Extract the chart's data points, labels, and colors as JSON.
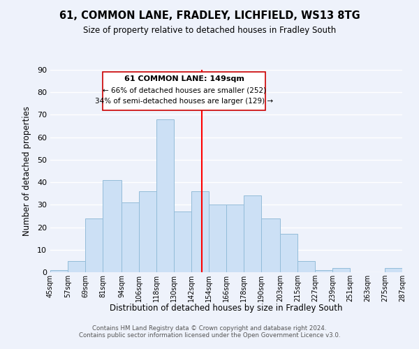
{
  "title": "61, COMMON LANE, FRADLEY, LICHFIELD, WS13 8TG",
  "subtitle": "Size of property relative to detached houses in Fradley South",
  "xlabel": "Distribution of detached houses by size in Fradley South",
  "ylabel": "Number of detached properties",
  "bar_color": "#cce0f5",
  "bar_edge_color": "#93bcd9",
  "bin_edges": [
    45,
    57,
    69,
    81,
    94,
    106,
    118,
    130,
    142,
    154,
    166,
    178,
    190,
    203,
    215,
    227,
    239,
    251,
    263,
    275,
    287
  ],
  "bin_labels": [
    "45sqm",
    "57sqm",
    "69sqm",
    "81sqm",
    "94sqm",
    "106sqm",
    "118sqm",
    "130sqm",
    "142sqm",
    "154sqm",
    "166sqm",
    "178sqm",
    "190sqm",
    "203sqm",
    "215sqm",
    "227sqm",
    "239sqm",
    "251sqm",
    "263sqm",
    "275sqm",
    "287sqm"
  ],
  "counts": [
    1,
    5,
    24,
    41,
    31,
    36,
    68,
    27,
    36,
    30,
    30,
    34,
    24,
    17,
    5,
    1,
    2,
    0,
    0,
    2
  ],
  "property_line_x": 149,
  "annotation_title": "61 COMMON LANE: 149sqm",
  "annotation_line1": "← 66% of detached houses are smaller (252)",
  "annotation_line2": "34% of semi-detached houses are larger (129) →",
  "ylim": [
    0,
    90
  ],
  "yticks": [
    0,
    10,
    20,
    30,
    40,
    50,
    60,
    70,
    80,
    90
  ],
  "footer_line1": "Contains HM Land Registry data © Crown copyright and database right 2024.",
  "footer_line2": "Contains public sector information licensed under the Open Government Licence v3.0.",
  "bg_color": "#eef2fb"
}
